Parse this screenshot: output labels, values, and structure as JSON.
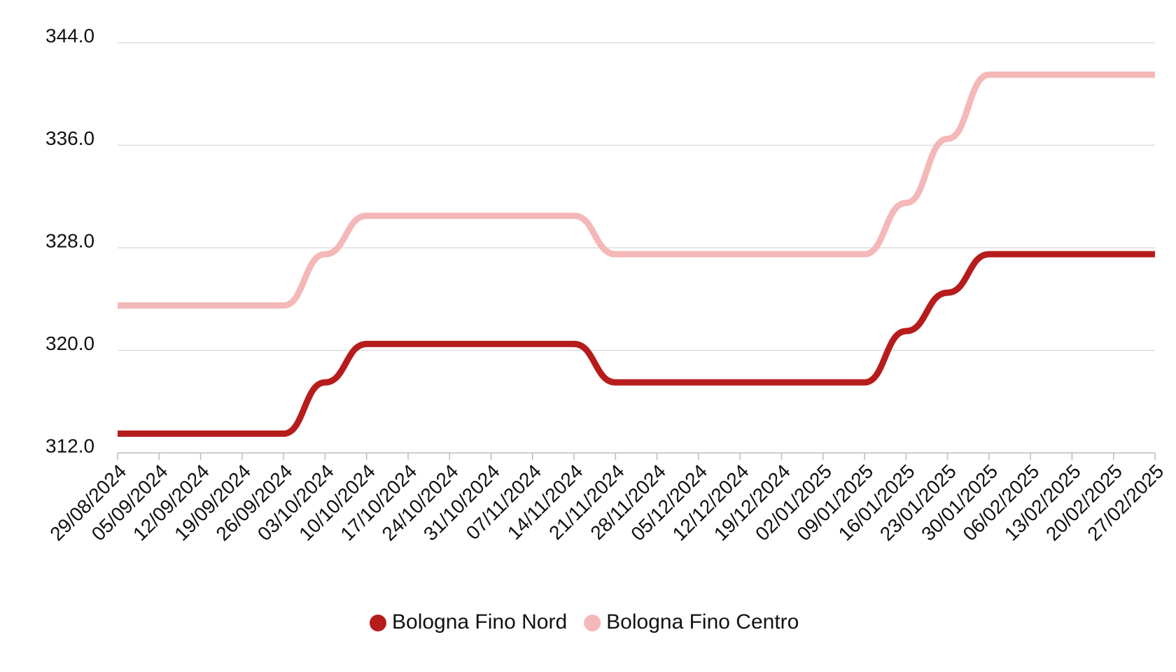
{
  "chart_data": {
    "type": "line",
    "categories": [
      "29/08/2024",
      "05/09/2024",
      "12/09/2024",
      "19/09/2024",
      "26/09/2024",
      "03/10/2024",
      "10/10/2024",
      "17/10/2024",
      "24/10/2024",
      "31/10/2024",
      "07/11/2024",
      "14/11/2024",
      "21/11/2024",
      "28/11/2024",
      "05/12/2024",
      "12/12/2024",
      "19/12/2024",
      "02/01/2025",
      "09/01/2025",
      "16/01/2025",
      "23/01/2025",
      "30/01/2025",
      "06/02/2025",
      "13/02/2025",
      "20/02/2025",
      "27/02/2025"
    ],
    "series": [
      {
        "name": "Bologna Fino Nord",
        "color": "#b71c1c",
        "values": [
          313.5,
          313.5,
          313.5,
          313.5,
          313.5,
          317.5,
          320.5,
          320.5,
          320.5,
          320.5,
          320.5,
          320.5,
          317.5,
          317.5,
          317.5,
          317.5,
          317.5,
          317.5,
          317.5,
          321.5,
          324.5,
          327.5,
          327.5,
          327.5,
          327.5,
          327.5
        ]
      },
      {
        "name": "Bologna Fino Centro",
        "color": "#f4b8b8",
        "values": [
          323.5,
          323.5,
          323.5,
          323.5,
          323.5,
          327.5,
          330.5,
          330.5,
          330.5,
          330.5,
          330.5,
          330.5,
          327.5,
          327.5,
          327.5,
          327.5,
          327.5,
          327.5,
          327.5,
          331.5,
          336.5,
          341.5,
          341.5,
          341.5,
          341.5,
          341.5
        ]
      }
    ],
    "ylim": [
      312,
      344
    ],
    "yticks": [
      {
        "value": 312,
        "label": "312.0"
      },
      {
        "value": 320,
        "label": "320.0"
      },
      {
        "value": 328,
        "label": "328.0"
      },
      {
        "value": 336,
        "label": "336.0"
      },
      {
        "value": 344,
        "label": "344.0"
      }
    ],
    "grid": true,
    "legend": "bottom"
  }
}
